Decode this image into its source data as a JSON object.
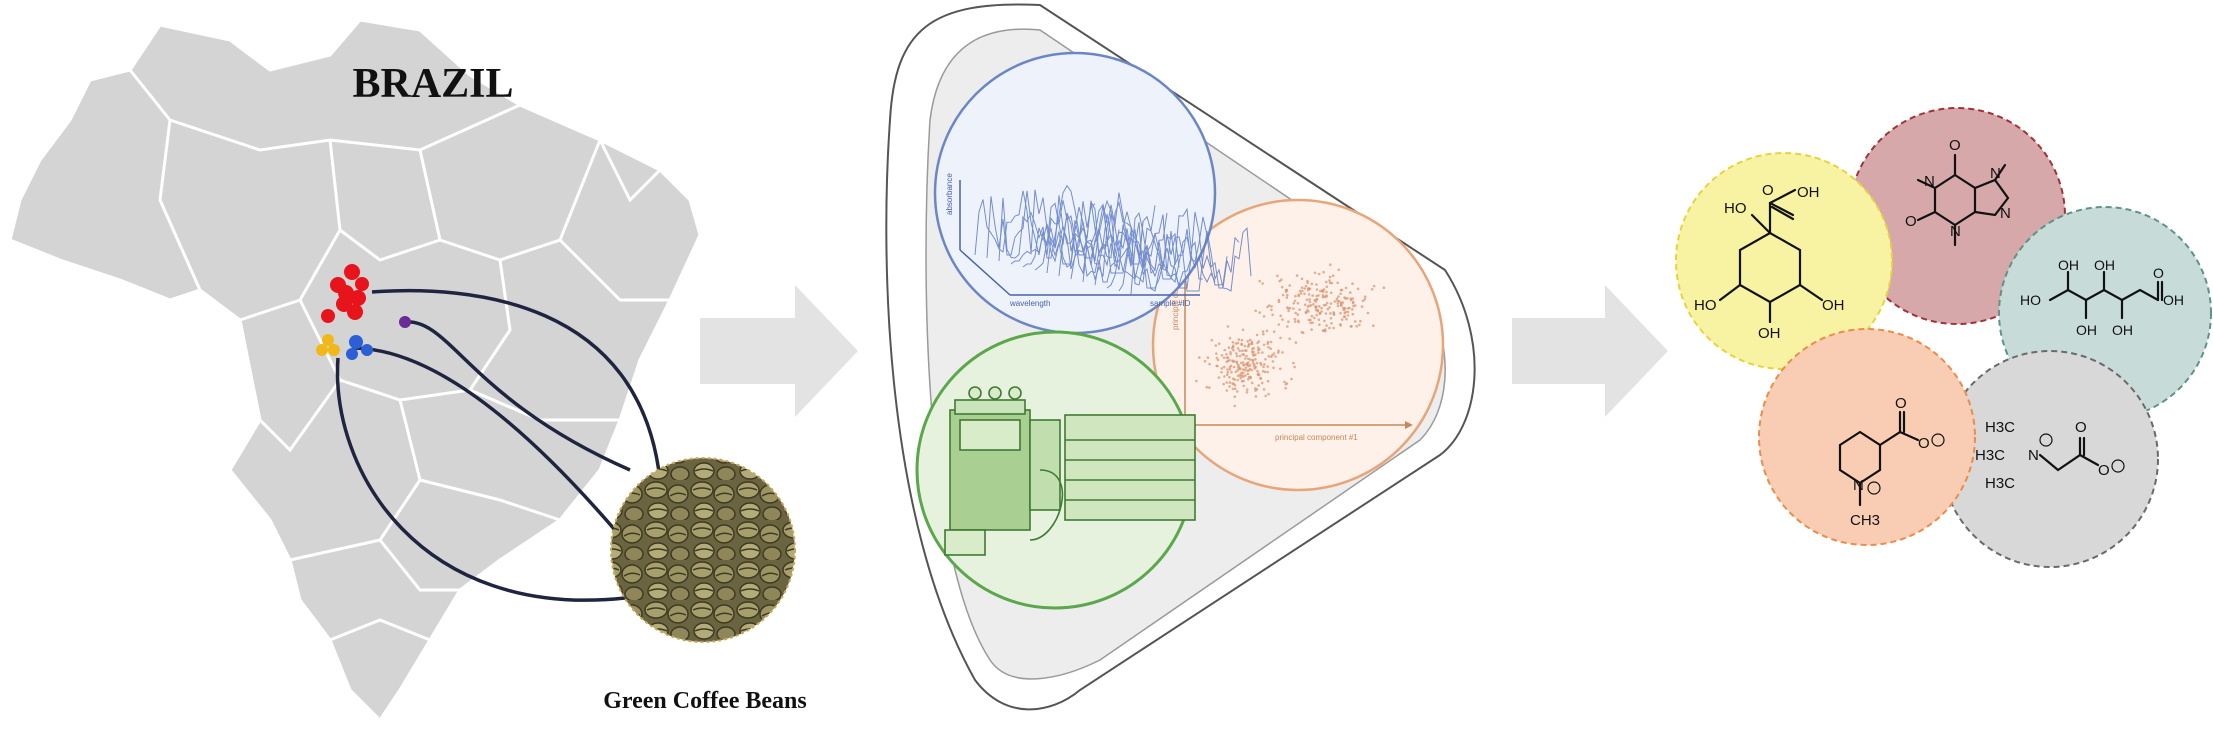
{
  "map": {
    "title": "BRAZIL",
    "caption": "Green Coffee Beans",
    "colors": {
      "land": "#d4d4d4",
      "border": "#ffffff",
      "connector": "#1f2540"
    },
    "sample_groups": [
      {
        "color": "#e8141c",
        "count": 7
      },
      {
        "color": "#f2b81b",
        "count": 3
      },
      {
        "color": "#2a5fd6",
        "count": 3
      },
      {
        "color": "#6a2a9a",
        "count": 1
      }
    ]
  },
  "analysis": {
    "spectra_panel": {
      "ylabel": "absorbance",
      "xlabel": "wavelength",
      "zlabel": "sample #ID",
      "color": "#6b86c6"
    },
    "instrument_panel": {
      "color": "#5aa84a",
      "fill": "#e6f2de"
    },
    "pca_panel": {
      "xlabel": "principal component #1",
      "ylabel": "principal component #2",
      "color": "#e8a57a",
      "fill": "#fdf1ea"
    }
  },
  "compounds": [
    {
      "name": "quinic-acid",
      "fill": "#f7f3a2",
      "border": "#e7d43a"
    },
    {
      "name": "caffeine",
      "fill": "#d7a8aa",
      "border": "#a2323a"
    },
    {
      "name": "gluconic-acid",
      "fill": "#c7dcd8",
      "border": "#5e928a"
    },
    {
      "name": "trigonelline",
      "fill": "#f8cdb4",
      "border": "#ec8c4a"
    },
    {
      "name": "betaine",
      "fill": "#d8d8d8",
      "border": "#6a6a6a"
    }
  ],
  "labels": {
    "OH": "OH",
    "HO": "HO",
    "O": "O",
    "N": "N",
    "H3C": "H3C",
    "CH3": "CH3",
    "plus": "+",
    "minus": "−"
  }
}
